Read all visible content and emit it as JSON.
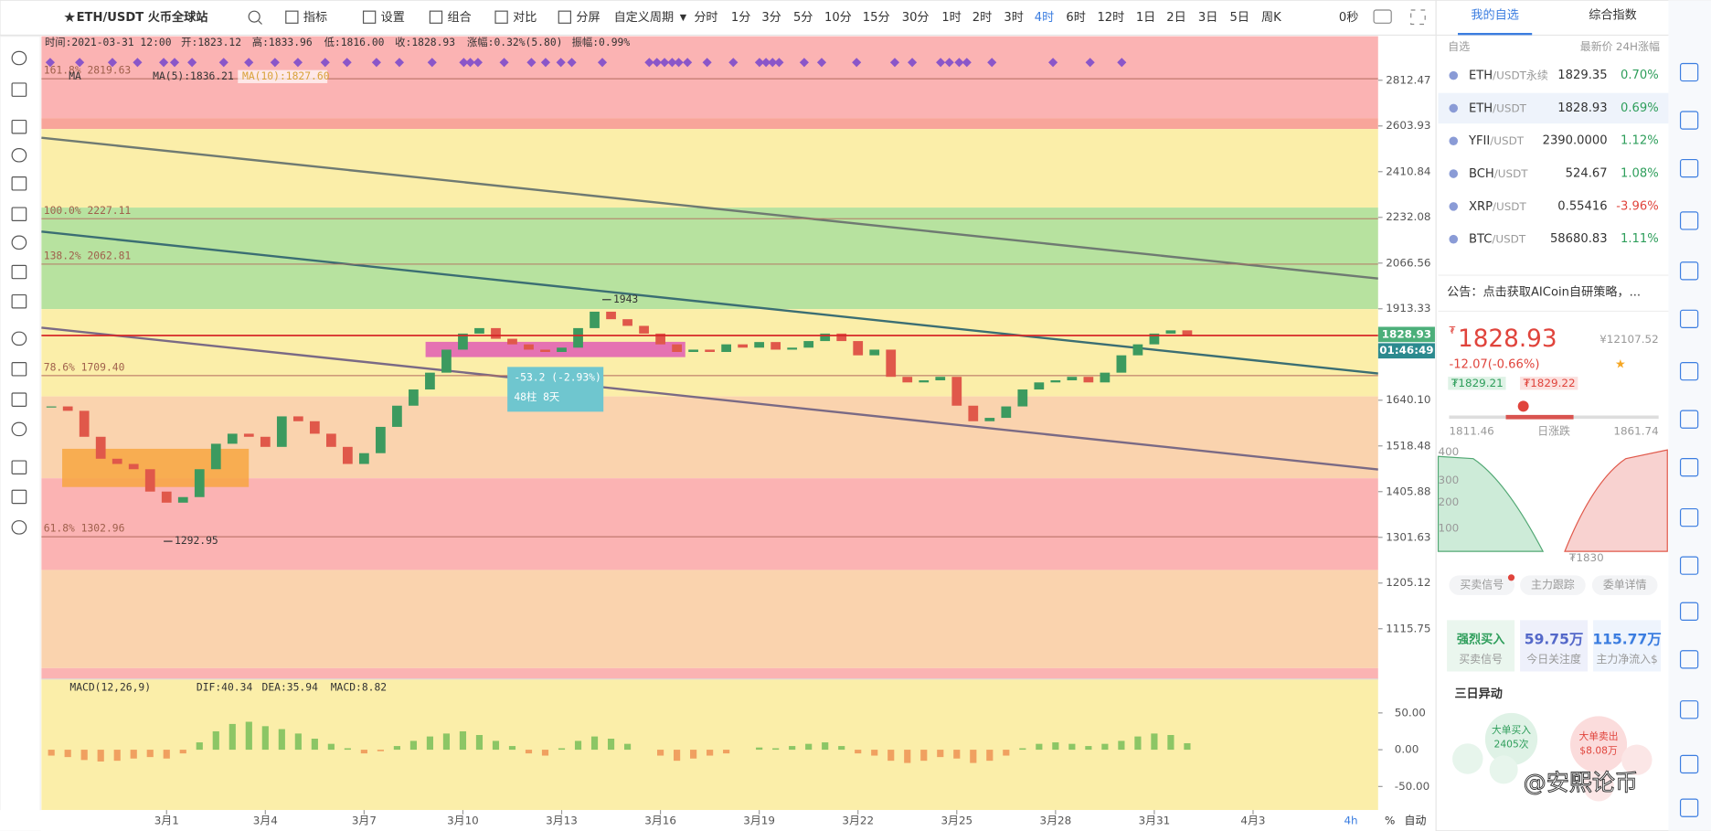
{
  "toolbar": {
    "symbol": "ETH/USDT 火币全球站",
    "tools": [
      "指标",
      "设置",
      "组合",
      "对比",
      "分屏"
    ],
    "custom_period": "自定义周期",
    "periods": [
      "分时",
      "1分",
      "3分",
      "5分",
      "10分",
      "15分",
      "30分",
      "1时",
      "2时",
      "3时",
      "4时",
      "6时",
      "12时",
      "1日",
      "2日",
      "3日",
      "5日",
      "周K"
    ],
    "active_period_index": 10,
    "countdown": "0秒"
  },
  "chart_data": {
    "type": "candlestick",
    "info": [
      "时间:2021-03-31 12:00",
      "开:1823.12",
      "高:1833.96",
      "低:1816.00",
      "收:1828.93",
      "涨幅:0.32%(5.80)",
      "振幅:0.99%"
    ],
    "ma_legend": [
      "MA",
      "MA(5):1836.21",
      "MA(10):1827.60"
    ],
    "x": [
      -3.5,
      -3,
      -2.5,
      -2,
      -1.5,
      -1,
      -0.5,
      0,
      0.5,
      1,
      1.5,
      2,
      2.5,
      3,
      3.5,
      4,
      4.5,
      5,
      5.5,
      6,
      6.5,
      7,
      7.5,
      8,
      8.5,
      9,
      9.5,
      10,
      10.5,
      11,
      11.5,
      12,
      12.5,
      13,
      13.5,
      14,
      14.5,
      15,
      15.5,
      16,
      16.5,
      17,
      17.5,
      18,
      18.5,
      19,
      19.5,
      20,
      20.5,
      21,
      21.5,
      22,
      22.5,
      23,
      23.5,
      24,
      24.5,
      25,
      25.5,
      26,
      26.5,
      27,
      27.5,
      28,
      28.5,
      29,
      29.5,
      30,
      30.5,
      31
    ],
    "values": [
      1623,
      1611,
      1542,
      1486,
      1473,
      1460,
      1406,
      1380,
      1393,
      1460,
      1524,
      1550,
      1542,
      1516,
      1596,
      1583,
      1550,
      1516,
      1473,
      1500,
      1568,
      1625,
      1670,
      1718,
      1786,
      1835,
      1852,
      1819,
      1802,
      1786,
      1779,
      1792,
      1852,
      1904,
      1880,
      1859,
      1835,
      1802,
      1779,
      1786,
      1779,
      1802,
      1792,
      1809,
      1786,
      1792,
      1812,
      1835,
      1812,
      1769,
      1786,
      1706,
      1690,
      1696,
      1706,
      1625,
      1583,
      1592,
      1623,
      1670,
      1690,
      1696,
      1706,
      1690,
      1718,
      1769,
      1802,
      1835,
      1845,
      1828.93
    ],
    "up_color": "#3c9a5f",
    "down_color": "#e0584a",
    "xlim": [
      -3.8,
      36.8
    ],
    "xticks": [
      {
        "value": 0,
        "label": "3月1"
      },
      {
        "value": 3,
        "label": "3月4"
      },
      {
        "value": 6,
        "label": "3月7"
      },
      {
        "value": 9,
        "label": "3月10"
      },
      {
        "value": 12,
        "label": "3月13"
      },
      {
        "value": 15,
        "label": "3月16"
      },
      {
        "value": 18,
        "label": "3月19"
      },
      {
        "value": 21,
        "label": "3月22"
      },
      {
        "value": 24,
        "label": "3月25"
      },
      {
        "value": 27,
        "label": "3月28"
      },
      {
        "value": 30,
        "label": "3月31"
      },
      {
        "value": 33,
        "label": "4月3"
      }
    ],
    "ylim": [
      1025,
      3029
    ],
    "log_scale": true,
    "yticks": [
      2812.47,
      2603.93,
      2410.84,
      2232.08,
      2066.56,
      1913.33,
      {
        "value": 1640.1,
        "label": "1640.10"
      },
      1518.48,
      1405.88,
      1301.63,
      1205.12,
      1115.75
    ],
    "fib_levels": [
      {
        "label": "161.8% 2819.63",
        "value": 2819.63
      },
      {
        "label": "100.0% 2227.11",
        "value": 2227.11
      },
      {
        "label": "138.2% 2062.81",
        "value": 2062.81
      },
      {
        "label": "78.6% 1709.40",
        "value": 1709.4
      },
      {
        "label": "61.8% 1302.96",
        "value": 1302.96
      }
    ],
    "high_mark": 1943,
    "low_mark": 1292.95,
    "measure": "-53.2 (-2.93%)",
    "measure_bars": "48柱 8天",
    "countdown": "01:46:49",
    "interval": "4h",
    "percent_toggle": "%",
    "auto_toggle": "自动",
    "macd": {
      "type": "bar",
      "legend": [
        "MACD(12,26,9)",
        "DIF:40.34",
        "DEA:35.94",
        "MACD:8.82"
      ],
      "values": [
        -8,
        -10,
        -14,
        -16,
        -15,
        -12,
        -10,
        -12,
        -5,
        10,
        25,
        35,
        38,
        32,
        28,
        22,
        15,
        8,
        2,
        -5,
        -2,
        5,
        12,
        18,
        22,
        25,
        20,
        12,
        5,
        -5,
        -8,
        2,
        12,
        18,
        15,
        8,
        0,
        -8,
        -15,
        -12,
        -8,
        -5,
        0,
        3,
        2,
        5,
        8,
        10,
        5,
        -5,
        -8,
        -15,
        -18,
        -15,
        -10,
        -12,
        -18,
        -15,
        -8,
        2,
        8,
        10,
        8,
        5,
        8,
        12,
        18,
        22,
        20,
        8.82
      ],
      "ylim": [
        -82,
        96
      ],
      "yticks": [
        {
          "value": 50,
          "label": "50.00"
        },
        {
          "value": 0,
          "label": "0.00"
        },
        {
          "value": -50,
          "label": "-50.00"
        }
      ],
      "up_color": "#8cc665",
      "down_color": "#f0a060"
    }
  },
  "right_panel": {
    "tabs": [
      "我的自选",
      "综合指数"
    ],
    "columns": [
      "自选",
      "最新价",
      "24H涨幅"
    ],
    "watchlist": [
      {
        "symbol": "ETH",
        "quote": "/USDT永续",
        "price": "1829.35",
        "change": "0.70%"
      },
      {
        "symbol": "ETH",
        "quote": "/USDT",
        "price": "1828.93",
        "change": "0.69%"
      },
      {
        "symbol": "YFII",
        "quote": "/USDT",
        "price": "2390.0000",
        "change": "1.12%"
      },
      {
        "symbol": "BCH",
        "quote": "/USDT",
        "price": "524.67",
        "change": "1.08%"
      },
      {
        "symbol": "XRP",
        "quote": "/USDT",
        "price": "0.55416",
        "change": "-3.96%"
      },
      {
        "symbol": "BTC",
        "quote": "/USDT",
        "price": "58680.83",
        "change": "1.11%"
      }
    ],
    "notice": "公告：点击获取AICoin自研策略，...",
    "price": "1828.93",
    "price_cny": "¥12107.52",
    "change": "-12.07(-0.66%)",
    "bid": "₮1829.21",
    "ask": "₮1829.22",
    "day_low": "1811.46",
    "day_range_label": "日涨跌",
    "day_high": "1861.74",
    "depth_ticks": [
      "400",
      "300",
      "200",
      "100"
    ],
    "depth_price": "₮1830",
    "buttons": [
      "买卖信号",
      "主力跟踪",
      "委单详情"
    ],
    "cards": [
      {
        "value": "强烈买入",
        "label": "买卖信号"
      },
      {
        "value": "59.75万",
        "label": "今日关注度"
      },
      {
        "value": "115.77万",
        "label": "主力净流入$"
      }
    ],
    "section": "三日异动",
    "bubbles": [
      "大单买入",
      "2405次",
      "大单卖出",
      "$8.08万"
    ],
    "watermark": "@安熙论币"
  }
}
